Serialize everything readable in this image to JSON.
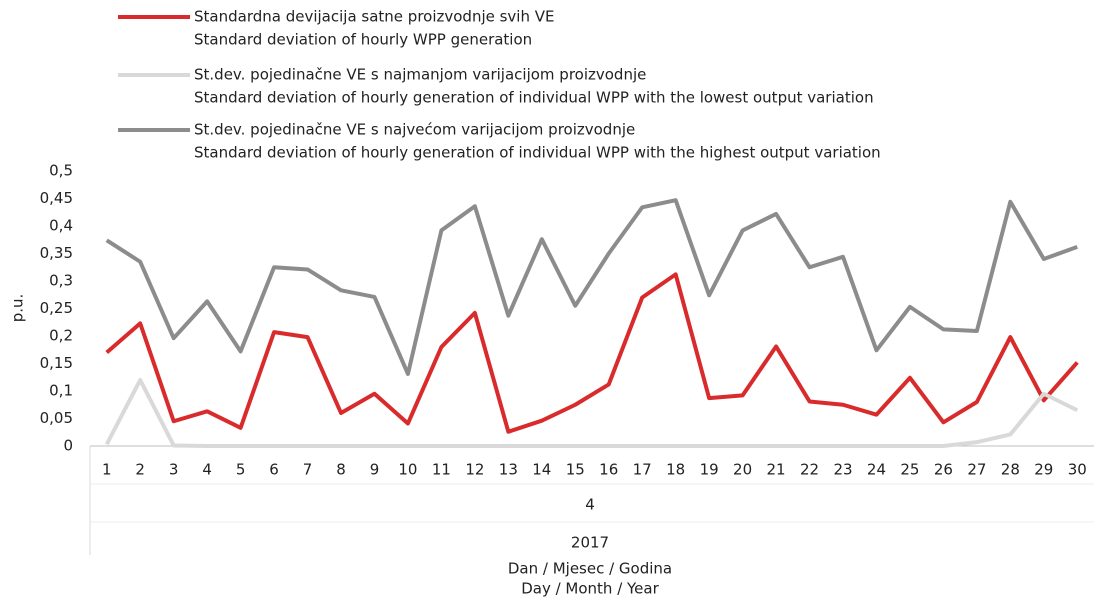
{
  "chart_data": {
    "type": "line",
    "y_label": "p.u.",
    "categories": [
      "1",
      "2",
      "3",
      "4",
      "5",
      "6",
      "7",
      "8",
      "9",
      "10",
      "11",
      "12",
      "13",
      "14",
      "15",
      "16",
      "17",
      "18",
      "19",
      "20",
      "21",
      "22",
      "23",
      "24",
      "25",
      "26",
      "27",
      "28",
      "29",
      "30"
    ],
    "x_group_labels": [
      "4",
      "2017"
    ],
    "x_label": [
      "Dan / Mjesec / Godina",
      "Day / Month / Year"
    ],
    "series": [
      {
        "name": [
          "Standardna devijacija satne proizvodnje svih VE",
          "Standard deviation of hourly WPP generation"
        ],
        "color": "#d92b2b",
        "values": [
          0.17,
          0.223,
          0.045,
          0.063,
          0.033,
          0.207,
          0.198,
          0.06,
          0.095,
          0.041,
          0.18,
          0.242,
          0.026,
          0.046,
          0.075,
          0.112,
          0.27,
          0.312,
          0.087,
          0.092,
          0.181,
          0.081,
          0.075,
          0.057,
          0.124,
          0.043,
          0.08,
          0.198,
          0.083,
          0.152
        ]
      },
      {
        "name": [
          "St.dev. pojedinačne VE s najmanjom varijacijom proizvodnje",
          "Standard deviation of hourly generation of individual WPP with the lowest output variation"
        ],
        "color": "#d9d9d9",
        "values": [
          0.003,
          0.12,
          0.001,
          0,
          0,
          0,
          0,
          0,
          0,
          0,
          0,
          0,
          0,
          0,
          0,
          0,
          0,
          0,
          0,
          0,
          0,
          0,
          0,
          0,
          0,
          0,
          0.007,
          0.021,
          0.095,
          0.065
        ]
      },
      {
        "name": [
          "St.dev. pojedinačne VE s najvećom varijacijom proizvodnje",
          "Standard deviation of hourly generation of individual WPP with the highest output variation"
        ],
        "color": "#8c8c8c",
        "values": [
          0.374,
          0.335,
          0.196,
          0.263,
          0.172,
          0.325,
          0.321,
          0.283,
          0.271,
          0.131,
          0.392,
          0.436,
          0.237,
          0.376,
          0.255,
          0.35,
          0.434,
          0.447,
          0.274,
          0.392,
          0.422,
          0.325,
          0.344,
          0.174,
          0.253,
          0.212,
          0.209,
          0.444,
          0.34,
          0.362
        ]
      }
    ],
    "ylim": [
      0,
      0.5
    ],
    "yticks": [
      0,
      {
        "value": 0.05,
        "label": "0,05"
      },
      {
        "value": 0.1,
        "label": "0,1"
      },
      {
        "value": 0.15,
        "label": "0,15"
      },
      {
        "value": 0.2,
        "label": "0,2"
      },
      {
        "value": 0.25,
        "label": "0,25"
      },
      {
        "value": 0.3,
        "label": "0,3"
      },
      {
        "value": 0.35,
        "label": "0,35"
      },
      {
        "value": 0.4,
        "label": "0,4"
      },
      {
        "value": 0.45,
        "label": "0,45"
      },
      {
        "value": 0.5,
        "label": "0,5"
      }
    ],
    "grid": false
  }
}
